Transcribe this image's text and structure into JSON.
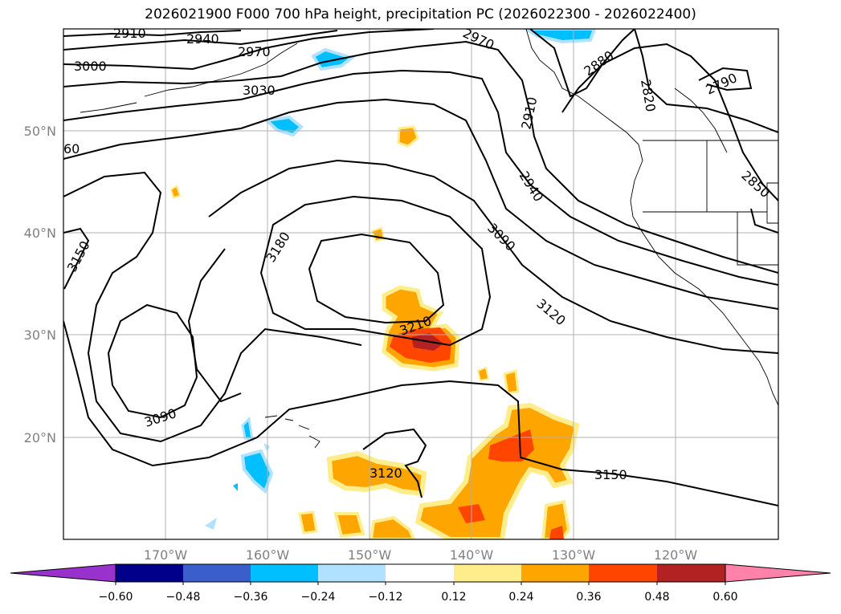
{
  "title": "2026021900 F000 700 hPa height, precipitation PC (2026022300 - 2026022400)",
  "lon_labels": [
    "170°W",
    "160°W",
    "150°W",
    "140°W",
    "130°W",
    "120°W"
  ],
  "lat_labels": [
    "50°N",
    "40°N",
    "30°N",
    "20°N"
  ],
  "contour_labels": [
    "2910",
    "2940",
    "2970",
    "3000",
    "3030",
    "60",
    "3150",
    "3180",
    "3210",
    "3090",
    "3120",
    "3120",
    "3150",
    "2970",
    "2880",
    "2820",
    "2790",
    "2910",
    "2940",
    "3090",
    "2850"
  ],
  "colorbar": {
    "ticks": [
      "−0.60",
      "−0.48",
      "−0.36",
      "−0.24",
      "−0.12",
      "0.12",
      "0.24",
      "0.36",
      "0.48",
      "0.60"
    ],
    "colors": {
      "under": "#9932cc",
      "b1": "#00008b",
      "b2": "#3a5fcd",
      "b3": "#00bfff",
      "b4": "#b0e2ff",
      "b5": "#ffffff",
      "b6": "#ffec8b",
      "b7": "#ffa500",
      "b8": "#ff4500",
      "b9": "#b22222",
      "over": "#ff82ab"
    }
  }
}
